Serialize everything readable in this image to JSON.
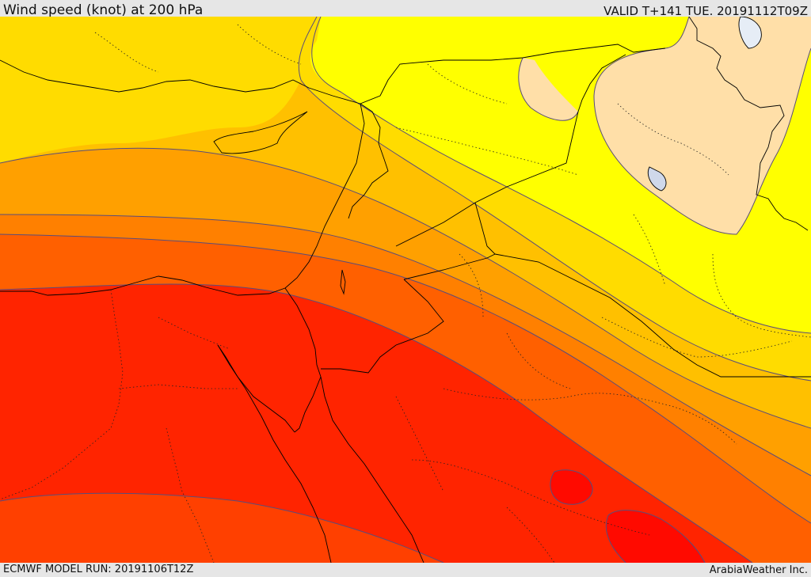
{
  "header": {
    "title": "Wind speed (knot) at 200 hPa",
    "valid": "VALID T+141 TUE. 20191112T09Z"
  },
  "footer": {
    "model_run": "ECMWF MODEL RUN: 20191106T12Z",
    "credit": "ArabiaWeather Inc."
  },
  "colors": {
    "band_lightest": "#ffdfa8",
    "band_yellow": "#ffff00",
    "band_gold": "#ffdc00",
    "band_amber": "#ffc000",
    "band_orange1": "#ffa000",
    "band_orange2": "#ff8000",
    "band_orange3": "#ff6000",
    "band_red1": "#ff4000",
    "band_red2": "#ff2400",
    "band_red3": "#ff0a00",
    "coastline": "#000000",
    "contour": "#5a4d7a"
  }
}
